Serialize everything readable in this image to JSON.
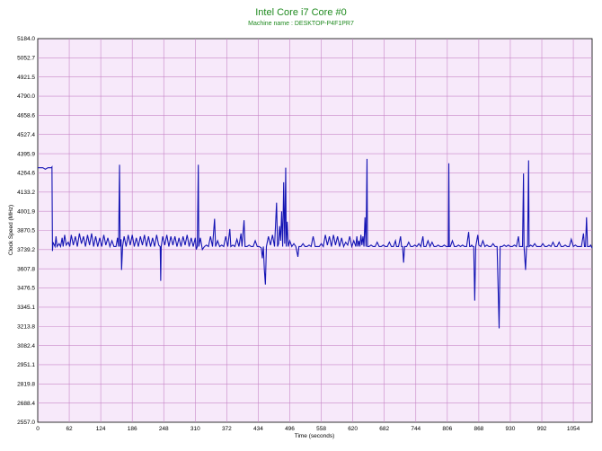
{
  "chart_data": {
    "type": "line",
    "title": "Intel Core i7 Core #0",
    "subtitle": "Machine name : DESKTOP-P4F1PR7",
    "xlabel": "Time (seconds)",
    "ylabel": "Clock Speed (MHz)",
    "xlim": [
      0,
      1091
    ],
    "ylim": [
      2557.0,
      5184.0
    ],
    "grid": true,
    "x_ticks": [
      "0",
      "62",
      "124",
      "186",
      "248",
      "310",
      "372",
      "434",
      "496",
      "558",
      "620",
      "682",
      "744",
      "806",
      "868",
      "930",
      "992",
      "1054"
    ],
    "y_ticks": [
      "5184.0",
      "5052.7",
      "4921.5",
      "4790.0",
      "4658.6",
      "4527.4",
      "4395.9",
      "4264.6",
      "4133.2",
      "4001.9",
      "3870.5",
      "3739.2",
      "3607.8",
      "3476.5",
      "3345.1",
      "3213.8",
      "3082.4",
      "2951.1",
      "2819.8",
      "2688.4",
      "2557.0"
    ],
    "colors": {
      "line": "#1414b4",
      "plot_bg": "#f7e9fa",
      "grid": "#c887c8",
      "title": "#1f8a1f"
    },
    "series": [
      {
        "values": [
          [
            0,
            4300
          ],
          [
            10,
            4300
          ],
          [
            15,
            4290
          ],
          [
            20,
            4300
          ],
          [
            27,
            4300
          ],
          [
            28,
            4305
          ],
          [
            29,
            3730
          ],
          [
            30,
            3790
          ],
          [
            34,
            3760
          ],
          [
            36,
            3830
          ],
          [
            38,
            3760
          ],
          [
            42,
            3780
          ],
          [
            45,
            3760
          ],
          [
            48,
            3820
          ],
          [
            50,
            3760
          ],
          [
            53,
            3840
          ],
          [
            56,
            3770
          ],
          [
            60,
            3790
          ],
          [
            63,
            3760
          ],
          [
            66,
            3840
          ],
          [
            70,
            3770
          ],
          [
            74,
            3830
          ],
          [
            78,
            3760
          ],
          [
            82,
            3850
          ],
          [
            86,
            3780
          ],
          [
            90,
            3830
          ],
          [
            94,
            3760
          ],
          [
            98,
            3840
          ],
          [
            102,
            3770
          ],
          [
            106,
            3850
          ],
          [
            110,
            3760
          ],
          [
            114,
            3830
          ],
          [
            118,
            3760
          ],
          [
            122,
            3820
          ],
          [
            126,
            3760
          ],
          [
            130,
            3840
          ],
          [
            134,
            3770
          ],
          [
            138,
            3820
          ],
          [
            142,
            3760
          ],
          [
            146,
            3800
          ],
          [
            150,
            3760
          ],
          [
            154,
            3760
          ],
          [
            157,
            3820
          ],
          [
            159,
            3760
          ],
          [
            161,
            4320
          ],
          [
            162,
            3760
          ],
          [
            164,
            3810
          ],
          [
            165,
            3600
          ],
          [
            167,
            3760
          ],
          [
            170,
            3830
          ],
          [
            174,
            3760
          ],
          [
            178,
            3840
          ],
          [
            182,
            3770
          ],
          [
            186,
            3840
          ],
          [
            190,
            3760
          ],
          [
            194,
            3820
          ],
          [
            198,
            3760
          ],
          [
            202,
            3830
          ],
          [
            206,
            3770
          ],
          [
            210,
            3840
          ],
          [
            214,
            3760
          ],
          [
            218,
            3830
          ],
          [
            222,
            3760
          ],
          [
            226,
            3820
          ],
          [
            230,
            3760
          ],
          [
            234,
            3840
          ],
          [
            238,
            3770
          ],
          [
            241,
            3760
          ],
          [
            242,
            3525
          ],
          [
            243,
            3760
          ],
          [
            246,
            3830
          ],
          [
            250,
            3770
          ],
          [
            254,
            3840
          ],
          [
            258,
            3760
          ],
          [
            262,
            3830
          ],
          [
            266,
            3770
          ],
          [
            270,
            3830
          ],
          [
            274,
            3760
          ],
          [
            278,
            3820
          ],
          [
            282,
            3760
          ],
          [
            286,
            3830
          ],
          [
            290,
            3770
          ],
          [
            294,
            3840
          ],
          [
            298,
            3760
          ],
          [
            302,
            3820
          ],
          [
            306,
            3760
          ],
          [
            310,
            3820
          ],
          [
            312,
            3740
          ],
          [
            314,
            3760
          ],
          [
            316,
            4320
          ],
          [
            317,
            3760
          ],
          [
            320,
            3820
          ],
          [
            324,
            3740
          ],
          [
            328,
            3760
          ],
          [
            332,
            3770
          ],
          [
            336,
            3760
          ],
          [
            340,
            3830
          ],
          [
            344,
            3760
          ],
          [
            348,
            3950
          ],
          [
            350,
            3760
          ],
          [
            354,
            3800
          ],
          [
            358,
            3760
          ],
          [
            362,
            3770
          ],
          [
            366,
            3760
          ],
          [
            370,
            3830
          ],
          [
            374,
            3760
          ],
          [
            378,
            3880
          ],
          [
            380,
            3760
          ],
          [
            384,
            3770
          ],
          [
            388,
            3760
          ],
          [
            392,
            3810
          ],
          [
            396,
            3760
          ],
          [
            400,
            3850
          ],
          [
            402,
            3760
          ],
          [
            406,
            3940
          ],
          [
            408,
            3760
          ],
          [
            412,
            3760
          ],
          [
            416,
            3770
          ],
          [
            420,
            3760
          ],
          [
            424,
            3760
          ],
          [
            428,
            3800
          ],
          [
            432,
            3760
          ],
          [
            436,
            3760
          ],
          [
            440,
            3750
          ],
          [
            442,
            3680
          ],
          [
            444,
            3760
          ],
          [
            446,
            3600
          ],
          [
            448,
            3500
          ],
          [
            450,
            3760
          ],
          [
            454,
            3830
          ],
          [
            458,
            3770
          ],
          [
            462,
            3840
          ],
          [
            466,
            3760
          ],
          [
            470,
            4060
          ],
          [
            472,
            3760
          ],
          [
            474,
            3780
          ],
          [
            476,
            3900
          ],
          [
            478,
            3800
          ],
          [
            480,
            4000
          ],
          [
            482,
            3760
          ],
          [
            484,
            4200
          ],
          [
            486,
            3780
          ],
          [
            488,
            4300
          ],
          [
            489,
            3760
          ],
          [
            491,
            3930
          ],
          [
            493,
            3760
          ],
          [
            496,
            3800
          ],
          [
            500,
            3760
          ],
          [
            504,
            3780
          ],
          [
            508,
            3760
          ],
          [
            512,
            3690
          ],
          [
            514,
            3760
          ],
          [
            518,
            3760
          ],
          [
            522,
            3780
          ],
          [
            526,
            3760
          ],
          [
            530,
            3760
          ],
          [
            534,
            3770
          ],
          [
            538,
            3760
          ],
          [
            542,
            3830
          ],
          [
            546,
            3760
          ],
          [
            550,
            3760
          ],
          [
            554,
            3760
          ],
          [
            558,
            3780
          ],
          [
            562,
            3760
          ],
          [
            566,
            3840
          ],
          [
            570,
            3770
          ],
          [
            574,
            3830
          ],
          [
            578,
            3760
          ],
          [
            582,
            3840
          ],
          [
            586,
            3770
          ],
          [
            590,
            3830
          ],
          [
            594,
            3760
          ],
          [
            598,
            3820
          ],
          [
            602,
            3760
          ],
          [
            606,
            3790
          ],
          [
            610,
            3770
          ],
          [
            614,
            3830
          ],
          [
            618,
            3760
          ],
          [
            622,
            3800
          ],
          [
            626,
            3760
          ],
          [
            628,
            3830
          ],
          [
            630,
            3760
          ],
          [
            632,
            3800
          ],
          [
            634,
            3760
          ],
          [
            636,
            3840
          ],
          [
            638,
            3770
          ],
          [
            640,
            3830
          ],
          [
            642,
            3760
          ],
          [
            644,
            3960
          ],
          [
            646,
            3760
          ],
          [
            648,
            4360
          ],
          [
            649,
            3760
          ],
          [
            652,
            3760
          ],
          [
            656,
            3770
          ],
          [
            660,
            3760
          ],
          [
            664,
            3760
          ],
          [
            668,
            3790
          ],
          [
            672,
            3760
          ],
          [
            676,
            3760
          ],
          [
            680,
            3770
          ],
          [
            684,
            3760
          ],
          [
            688,
            3760
          ],
          [
            692,
            3790
          ],
          [
            696,
            3760
          ],
          [
            700,
            3760
          ],
          [
            704,
            3800
          ],
          [
            706,
            3760
          ],
          [
            710,
            3760
          ],
          [
            714,
            3830
          ],
          [
            716,
            3760
          ],
          [
            718,
            3760
          ],
          [
            720,
            3650
          ],
          [
            722,
            3760
          ],
          [
            726,
            3760
          ],
          [
            730,
            3790
          ],
          [
            734,
            3760
          ],
          [
            738,
            3760
          ],
          [
            742,
            3770
          ],
          [
            746,
            3760
          ],
          [
            750,
            3780
          ],
          [
            754,
            3760
          ],
          [
            758,
            3830
          ],
          [
            760,
            3760
          ],
          [
            764,
            3760
          ],
          [
            768,
            3800
          ],
          [
            772,
            3760
          ],
          [
            776,
            3790
          ],
          [
            780,
            3760
          ],
          [
            784,
            3760
          ],
          [
            788,
            3770
          ],
          [
            792,
            3760
          ],
          [
            796,
            3760
          ],
          [
            800,
            3770
          ],
          [
            804,
            3760
          ],
          [
            808,
            3760
          ],
          [
            809,
            4330
          ],
          [
            810,
            3760
          ],
          [
            812,
            3760
          ],
          [
            816,
            3800
          ],
          [
            820,
            3760
          ],
          [
            824,
            3760
          ],
          [
            828,
            3770
          ],
          [
            832,
            3760
          ],
          [
            836,
            3770
          ],
          [
            840,
            3760
          ],
          [
            844,
            3760
          ],
          [
            848,
            3860
          ],
          [
            850,
            3760
          ],
          [
            852,
            3760
          ],
          [
            854,
            3770
          ],
          [
            856,
            3760
          ],
          [
            858,
            3760
          ],
          [
            860,
            3390
          ],
          [
            862,
            3760
          ],
          [
            866,
            3840
          ],
          [
            868,
            3770
          ],
          [
            872,
            3760
          ],
          [
            876,
            3800
          ],
          [
            880,
            3760
          ],
          [
            884,
            3770
          ],
          [
            888,
            3760
          ],
          [
            892,
            3760
          ],
          [
            896,
            3780
          ],
          [
            900,
            3760
          ],
          [
            904,
            3760
          ],
          [
            908,
            3200
          ],
          [
            910,
            3760
          ],
          [
            914,
            3760
          ],
          [
            918,
            3770
          ],
          [
            922,
            3760
          ],
          [
            926,
            3770
          ],
          [
            930,
            3760
          ],
          [
            934,
            3760
          ],
          [
            938,
            3770
          ],
          [
            942,
            3760
          ],
          [
            946,
            3830
          ],
          [
            948,
            3760
          ],
          [
            950,
            3760
          ],
          [
            954,
            3760
          ],
          [
            956,
            4260
          ],
          [
            957,
            3760
          ],
          [
            960,
            3600
          ],
          [
            962,
            3760
          ],
          [
            964,
            3760
          ],
          [
            966,
            4350
          ],
          [
            967,
            3760
          ],
          [
            970,
            3770
          ],
          [
            974,
            3760
          ],
          [
            978,
            3780
          ],
          [
            982,
            3760
          ],
          [
            986,
            3760
          ],
          [
            990,
            3760
          ],
          [
            994,
            3780
          ],
          [
            998,
            3760
          ],
          [
            1002,
            3760
          ],
          [
            1006,
            3770
          ],
          [
            1010,
            3760
          ],
          [
            1014,
            3790
          ],
          [
            1018,
            3760
          ],
          [
            1022,
            3760
          ],
          [
            1026,
            3790
          ],
          [
            1030,
            3760
          ],
          [
            1034,
            3760
          ],
          [
            1038,
            3770
          ],
          [
            1042,
            3760
          ],
          [
            1046,
            3760
          ],
          [
            1050,
            3810
          ],
          [
            1054,
            3760
          ],
          [
            1058,
            3770
          ],
          [
            1062,
            3760
          ],
          [
            1066,
            3760
          ],
          [
            1070,
            3760
          ],
          [
            1074,
            3850
          ],
          [
            1076,
            3760
          ],
          [
            1078,
            3760
          ],
          [
            1080,
            3960
          ],
          [
            1082,
            3760
          ],
          [
            1086,
            3760
          ],
          [
            1088,
            3770
          ],
          [
            1091,
            3750
          ]
        ]
      }
    ]
  }
}
